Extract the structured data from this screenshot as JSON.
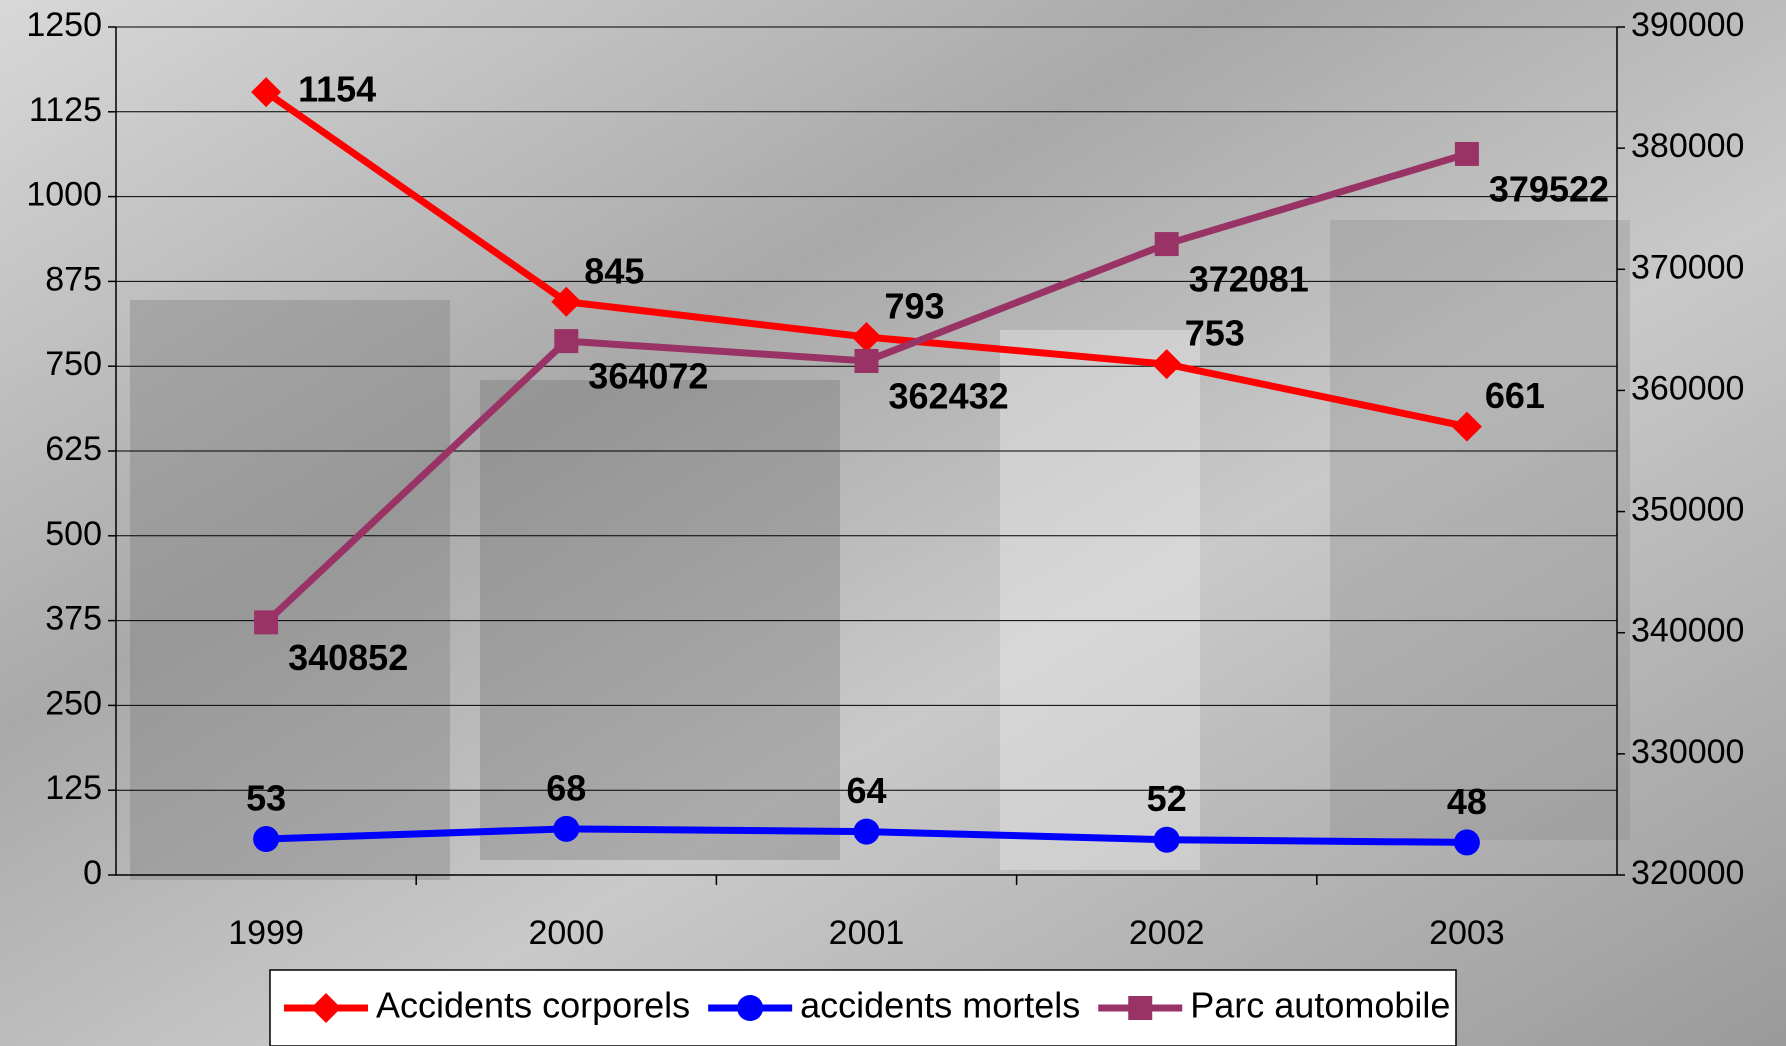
{
  "chart_data": {
    "type": "line",
    "categories": [
      "1999",
      "2000",
      "2001",
      "2002",
      "2003"
    ],
    "series": [
      {
        "name": "Accidents corporels",
        "color": "#ff0000",
        "marker": "diamond",
        "values": [
          1154,
          845,
          793,
          753,
          661
        ]
      },
      {
        "name": "accidents mortels",
        "color": "#0000ff",
        "marker": "circle",
        "values": [
          53,
          68,
          64,
          52,
          48
        ]
      },
      {
        "name": "Parc automobile",
        "color": "#993366",
        "marker": "square",
        "axis": "y2",
        "values": [
          340852,
          364072,
          362432,
          372081,
          379522
        ]
      }
    ],
    "ylim": [
      0,
      1250
    ],
    "yticks": [
      0,
      125,
      250,
      375,
      500,
      625,
      750,
      875,
      1000,
      1125,
      1250
    ],
    "y2lim": [
      320000,
      390000
    ],
    "y2ticks": [
      320000,
      330000,
      340000,
      350000,
      360000,
      370000,
      380000,
      390000
    ],
    "grid": true,
    "legend": "bottom"
  }
}
